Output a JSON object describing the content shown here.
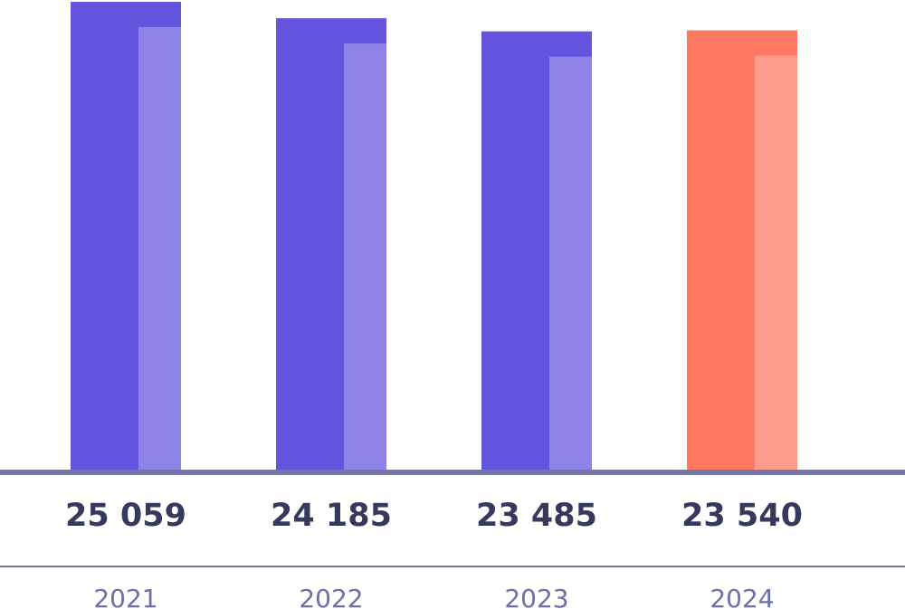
{
  "chart_data": {
    "type": "bar",
    "categories": [
      "2021",
      "2022",
      "2023",
      "2024"
    ],
    "values": [
      25059,
      24185,
      23485,
      23540
    ],
    "value_labels": [
      "25 059",
      "24 185",
      "23 485",
      "23 540"
    ],
    "colors": [
      "#6355e0",
      "#6355e0",
      "#6355e0",
      "#ff7862"
    ]
  }
}
